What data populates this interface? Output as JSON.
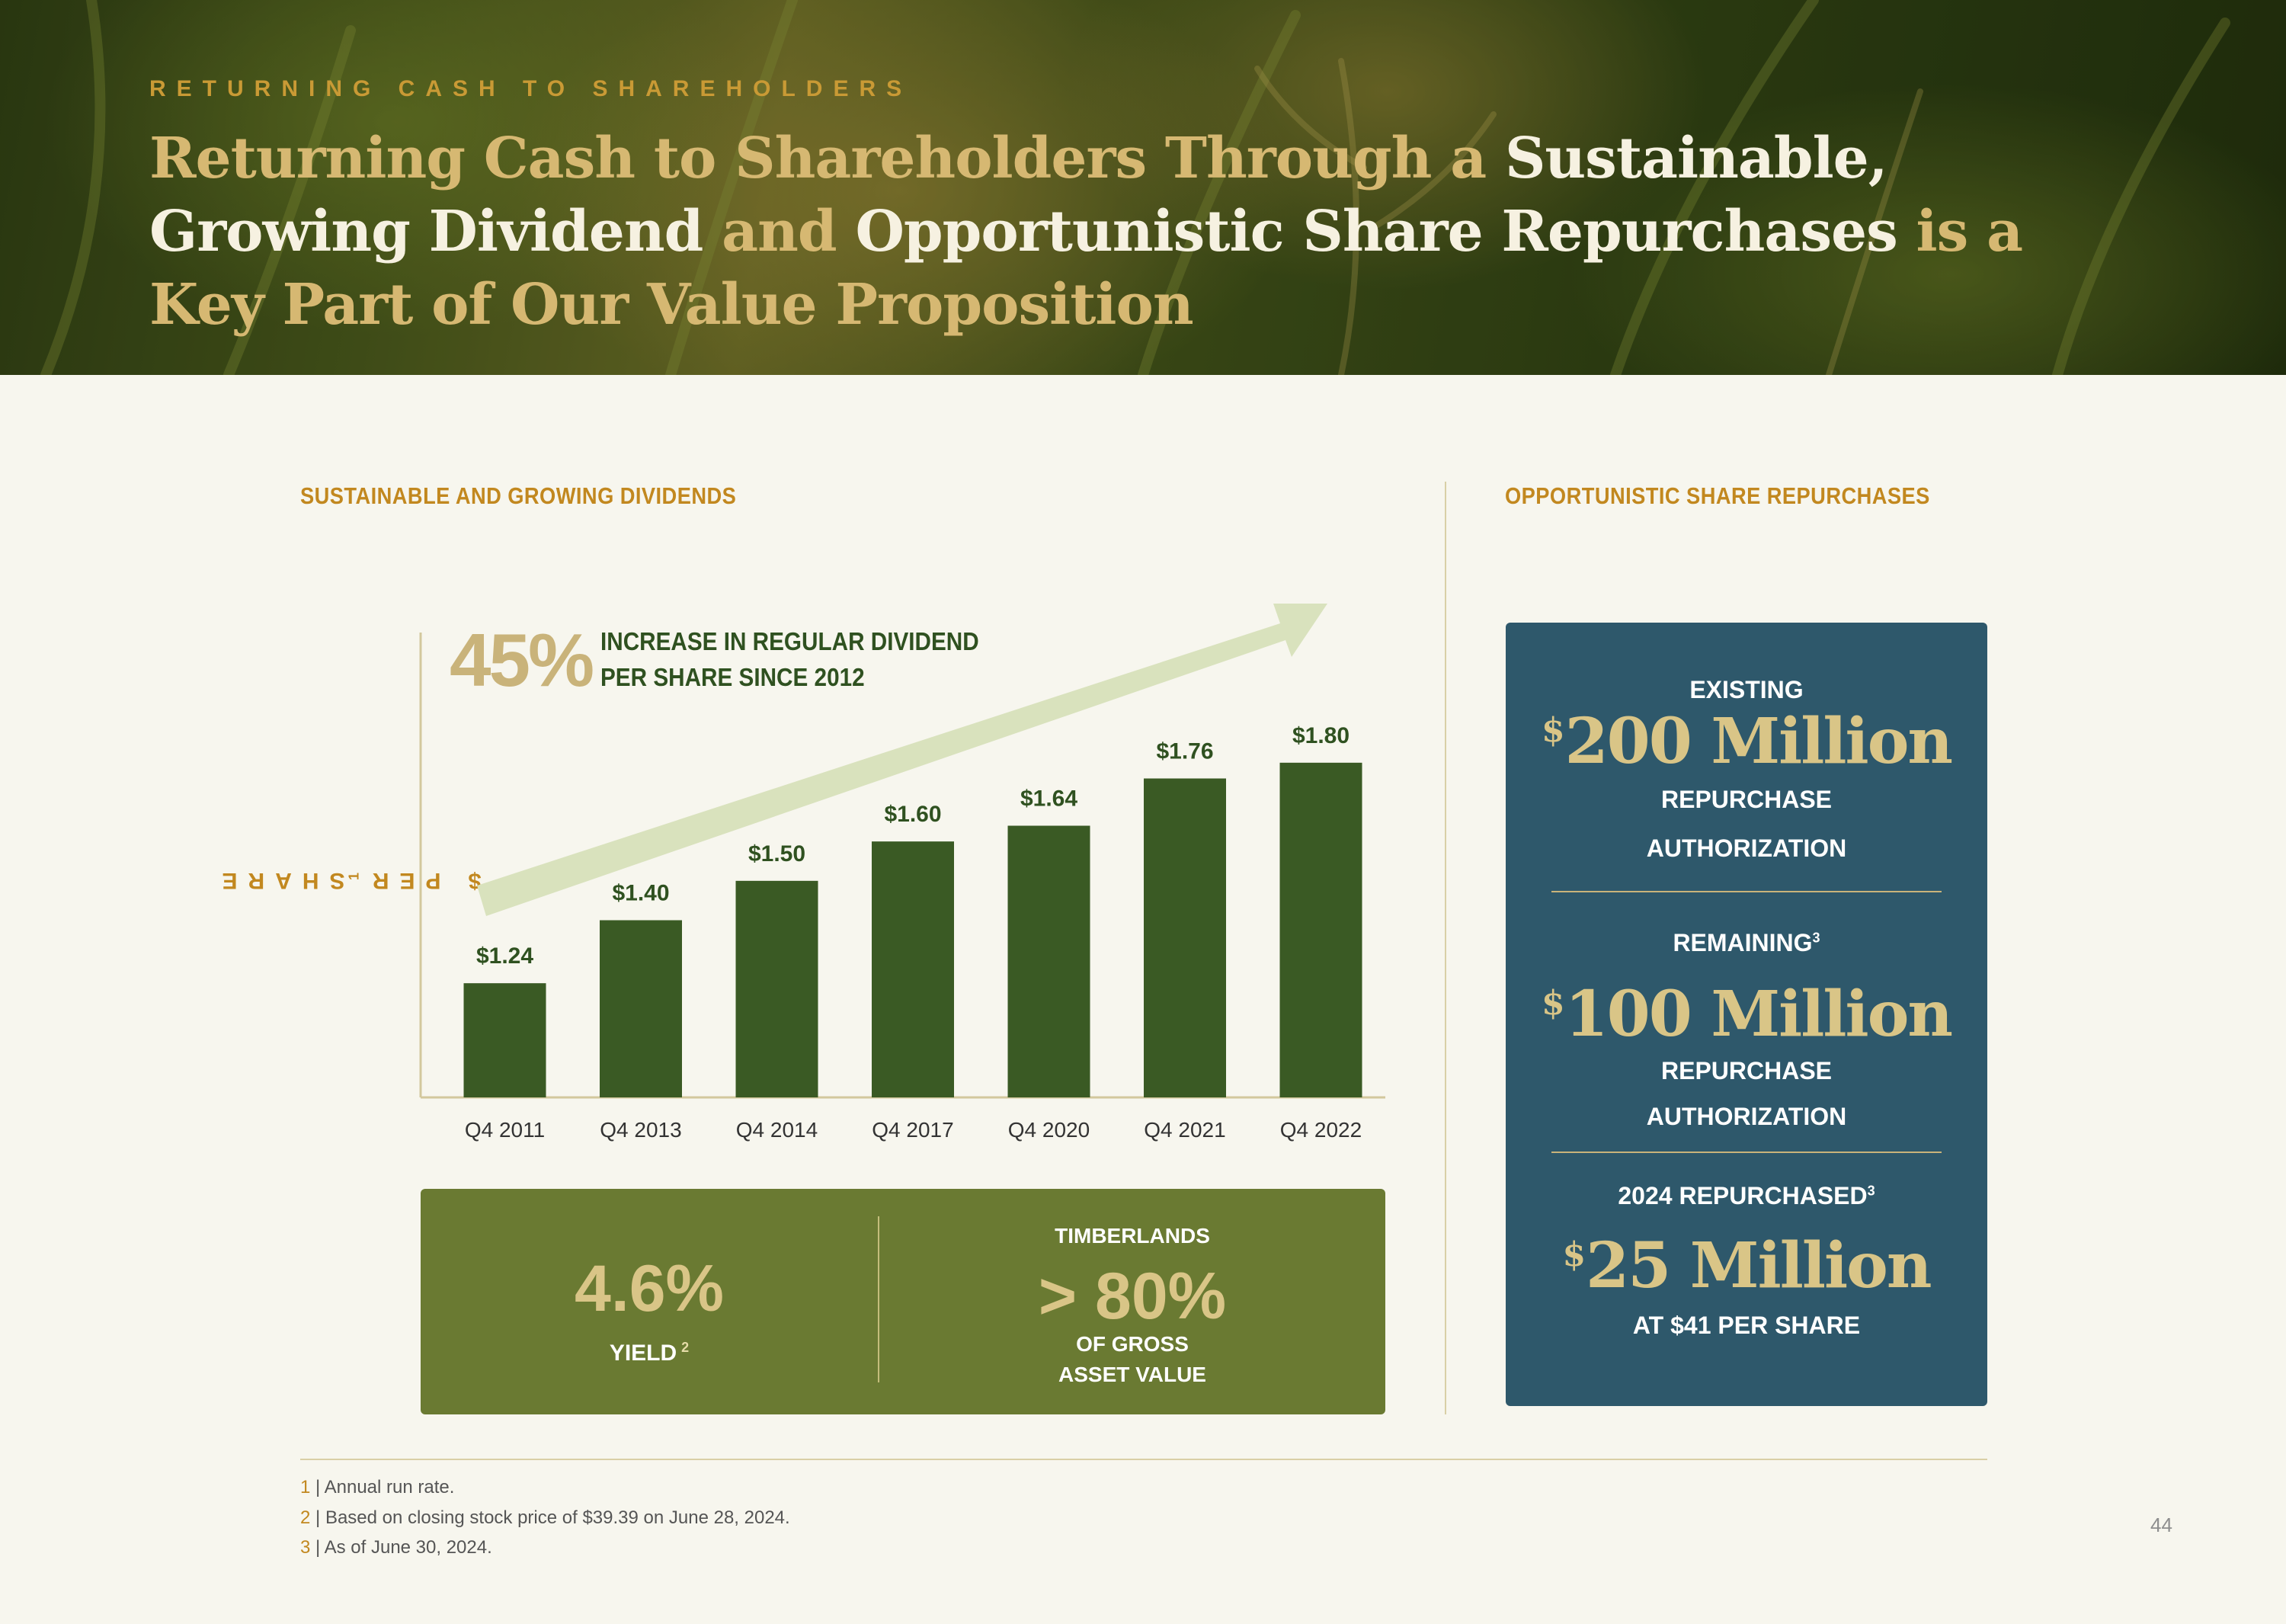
{
  "header": {
    "eyebrow": "RETURNING CASH TO SHAREHOLDERS",
    "headline_segments": [
      {
        "text": "Returning Cash to Shareholders Through a ",
        "tone": "gold"
      },
      {
        "text": "Sustainable, Growing Dividend",
        "tone": "cream"
      },
      {
        "text": " and ",
        "tone": "gold"
      },
      {
        "text": "Opportunistic Share Repurchases",
        "tone": "cream"
      },
      {
        "text": " is a Key Part of Our Value Proposition",
        "tone": "gold"
      }
    ]
  },
  "left_section": {
    "title": "SUSTAINABLE AND GROWING DIVIDENDS",
    "stat_value": "45%",
    "stat_text_line1": "INCREASE IN REGULAR DIVIDEND",
    "stat_text_line2": "PER SHARE SINCE 2012"
  },
  "chart_data": {
    "type": "bar",
    "title": "",
    "ylabel": "$ PER SHARE",
    "ylabel_footnote": "1",
    "xlabel": "",
    "categories": [
      "Q4 2011",
      "Q4 2013",
      "Q4 2014",
      "Q4 2017",
      "Q4 2020",
      "Q4 2021",
      "Q4 2022"
    ],
    "values": [
      1.24,
      1.4,
      1.5,
      1.6,
      1.64,
      1.76,
      1.8
    ],
    "data_labels": [
      "$1.24",
      "$1.40",
      "$1.50",
      "$1.60",
      "$1.64",
      "$1.76",
      "$1.80"
    ],
    "ylim": [
      0.95,
      1.85
    ],
    "grid": false,
    "trend_arrow": true
  },
  "yield_box": {
    "yield_value": "4.6%",
    "yield_label": "YIELD",
    "yield_footnote": "2",
    "timber_top": "TIMBERLANDS",
    "timber_value": "> 80%",
    "timber_bottom_line1": "OF GROSS",
    "timber_bottom_line2": "ASSET VALUE"
  },
  "right_section": {
    "title": "OPPORTUNISTIC SHARE REPURCHASES",
    "block1_label": "EXISTING",
    "block1_currency": "$",
    "block1_amount": "200 Million",
    "block1_sub_line1": "REPURCHASE",
    "block1_sub_line2": "AUTHORIZATION",
    "block2_label": "REMAINING",
    "block2_footnote": "3",
    "block2_currency": "$",
    "block2_amount": "100 Million",
    "block2_sub_line1": "REPURCHASE",
    "block2_sub_line2": "AUTHORIZATION",
    "block3_label": "2024 REPURCHASED",
    "block3_footnote": "3",
    "block3_currency": "$",
    "block3_amount": "25 Million",
    "block3_sub": "AT $41 PER SHARE"
  },
  "footnotes": [
    {
      "num": "1",
      "sep": " | ",
      "text": "Annual run rate."
    },
    {
      "num": "2",
      "sep": " | ",
      "text": "Based on closing stock price of $39.39 on June 28, 2024."
    },
    {
      "num": "3",
      "sep": " | ",
      "text": "As of June 30, 2024."
    }
  ],
  "page_number": "44",
  "colors": {
    "bar": "#3a5a24",
    "arrow": "#d9e2bd",
    "gold": "#c2881f",
    "olive_box": "#6a7a32",
    "blue_card": "#2e586b"
  }
}
